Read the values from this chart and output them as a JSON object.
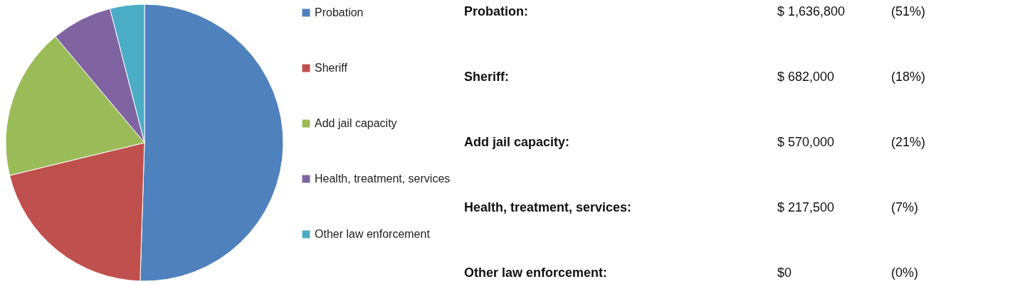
{
  "chart_data": {
    "type": "pie",
    "categories": [
      "Probation",
      "Sheriff",
      "Add jail capacity",
      "Health, treatment, services",
      "Other law enforcement"
    ],
    "values": [
      50.5,
      20.7,
      17.7,
      7.1,
      4.0
    ],
    "colors": [
      "#4f81bd",
      "#c0504d",
      "#9bbb59",
      "#8064a2",
      "#4bacc6"
    ],
    "legend": "right",
    "annotations": [
      "Probation:",
      "$ 1,636,800",
      "(51%)",
      "Sheriff:",
      "$ 682,000",
      "(18%)",
      "Add jail capacity:",
      "$ 570,000",
      "(21%)",
      "Health, treatment, services:",
      "$ 217,500",
      "(7%)",
      "Other law enforcement:",
      "$0",
      "(0%)"
    ]
  }
}
